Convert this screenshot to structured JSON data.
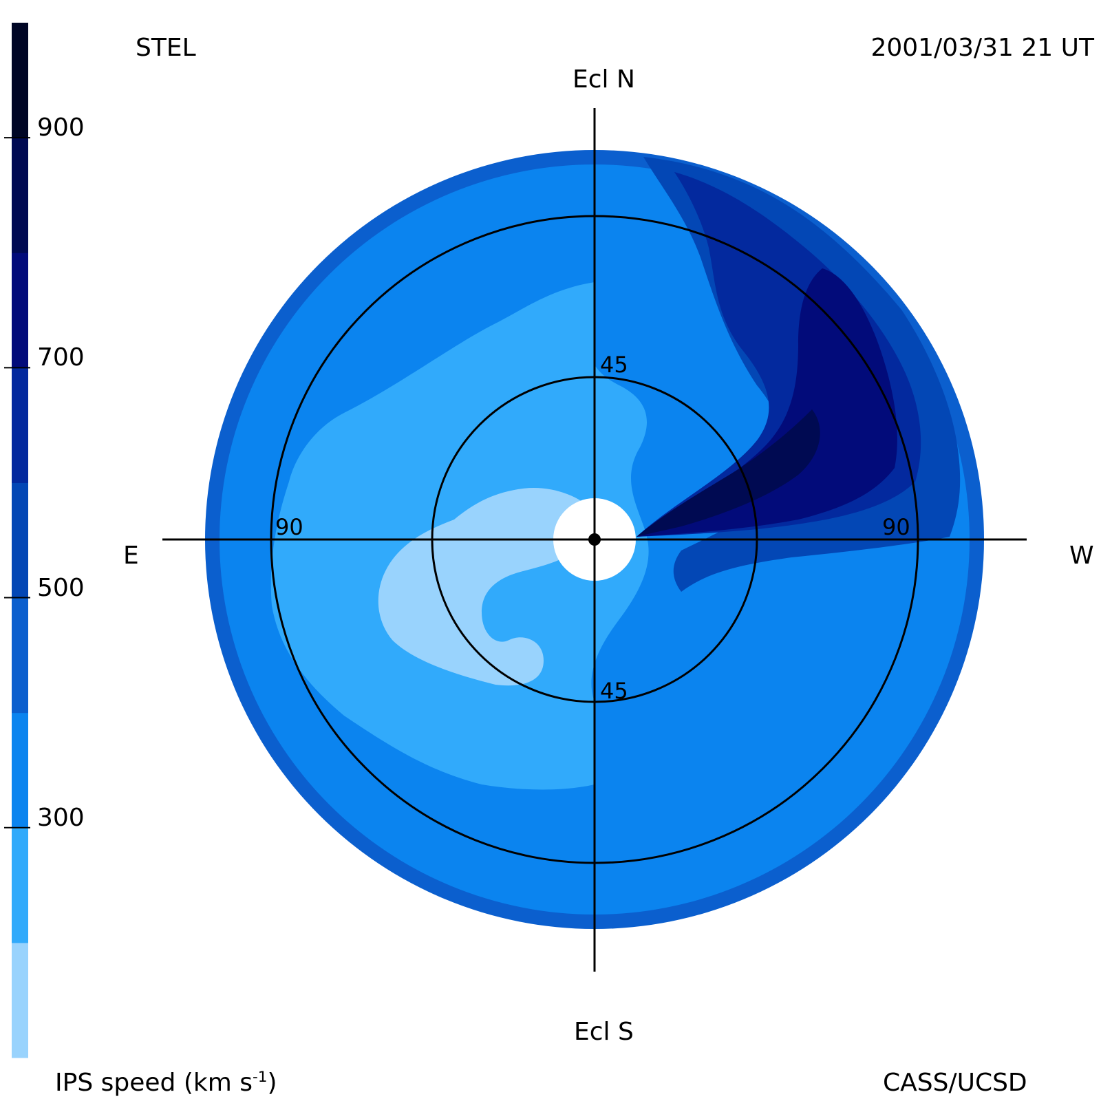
{
  "header": {
    "site": "STEL",
    "timestamp": "2001/03/31 21 UT"
  },
  "directions": {
    "north": "Ecl N",
    "south": "Ecl S",
    "east": "E",
    "west": "W"
  },
  "footer": {
    "colorbar_title_main": "IPS speed (km s",
    "colorbar_title_sup": "-1",
    "colorbar_title_end": ")",
    "credit": "CASS/UCSD"
  },
  "colorbar": {
    "ticks": [
      "900",
      "700",
      "500",
      "300"
    ],
    "tick_values": [
      900,
      700,
      500,
      300
    ],
    "range": [
      100,
      1000
    ],
    "levels": [
      {
        "from": 100,
        "to": 200,
        "color": "#99d3fd"
      },
      {
        "from": 200,
        "to": 300,
        "color": "#31aafb"
      },
      {
        "from": 300,
        "to": 400,
        "color": "#0b84ef"
      },
      {
        "from": 400,
        "to": 500,
        "color": "#0b5fce"
      },
      {
        "from": 500,
        "to": 600,
        "color": "#0347b5"
      },
      {
        "from": 600,
        "to": 700,
        "color": "#03299e"
      },
      {
        "from": 700,
        "to": 800,
        "color": "#020b7a"
      },
      {
        "from": 800,
        "to": 900,
        "color": "#000a52"
      },
      {
        "from": 900,
        "to": 1000,
        "color": "#000625"
      }
    ]
  },
  "chart_data": {
    "type": "heatmap",
    "projection": "fish-eye sky map centred on the Sun, elongation rings",
    "rings": [
      {
        "elongation": 45,
        "label": "45"
      },
      {
        "elongation": 90,
        "label": "90"
      }
    ],
    "elongation_limit": 120,
    "regions": [
      {
        "name": "outer-rim",
        "speed_bin": [
          400,
          500
        ]
      },
      {
        "name": "disk-base",
        "speed_bin": [
          300,
          400
        ]
      },
      {
        "name": "east-slow-lobe",
        "speed_bin": [
          200,
          300
        ]
      },
      {
        "name": "central-slowest",
        "speed_bin": [
          100,
          200
        ]
      },
      {
        "name": "northwest-fast-outer",
        "speed_bin": [
          500,
          600
        ]
      },
      {
        "name": "northwest-fast-mid",
        "speed_bin": [
          600,
          700
        ]
      },
      {
        "name": "northwest-fast-core",
        "speed_bin": [
          700,
          800
        ]
      },
      {
        "name": "northwest-fast-peak",
        "speed_bin": [
          800,
          900
        ]
      }
    ]
  }
}
